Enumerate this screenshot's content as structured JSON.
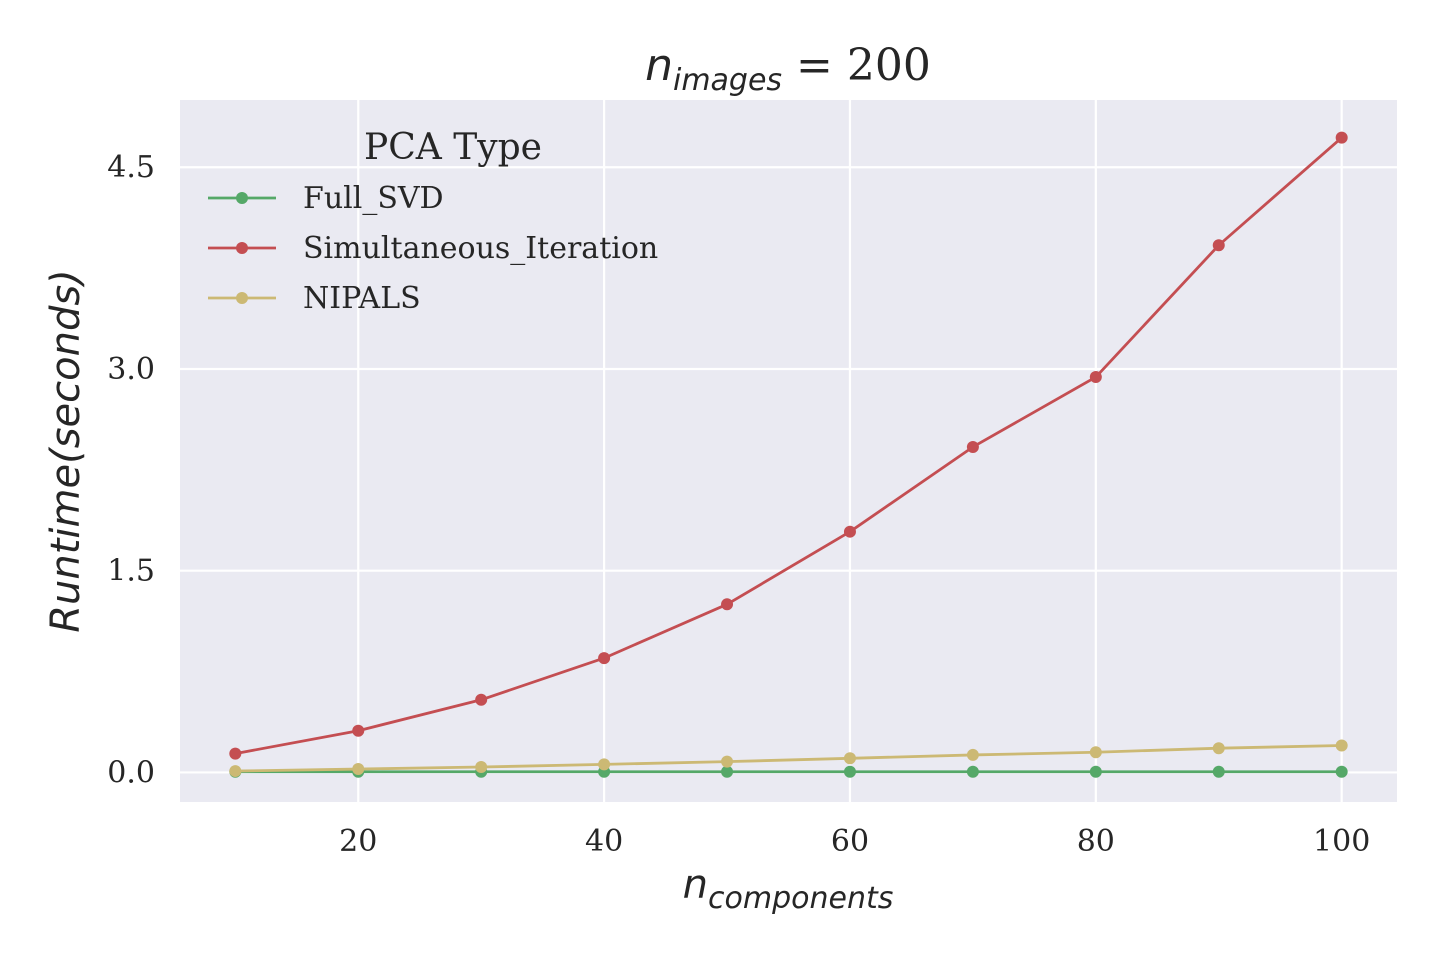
{
  "chart_data": {
    "type": "line",
    "title": {
      "var": "n",
      "sub": "images",
      "suffix": " = 200"
    },
    "xlabel": {
      "var": "n",
      "sub": "components"
    },
    "ylabel": "Runtime(seconds)",
    "x": [
      10,
      20,
      30,
      40,
      50,
      60,
      70,
      80,
      90,
      100
    ],
    "xlim": [
      5.5,
      104.5
    ],
    "ylim": [
      -0.22,
      5.0
    ],
    "xticks": [
      20,
      40,
      60,
      80,
      100
    ],
    "xtick_labels": [
      "20",
      "40",
      "60",
      "80",
      "100"
    ],
    "yticks": [
      0.0,
      1.5,
      3.0,
      4.5
    ],
    "ytick_labels": [
      "0.0",
      "1.5",
      "3.0",
      "4.5"
    ],
    "grid": true,
    "legend": {
      "title": "PCA Type",
      "placement": "upper-left"
    },
    "series": [
      {
        "name": "Full_SVD",
        "color": "#55a868",
        "values": [
          0.005,
          0.005,
          0.005,
          0.005,
          0.005,
          0.005,
          0.005,
          0.005,
          0.005,
          0.005
        ]
      },
      {
        "name": "Simultaneous_Iteration",
        "color": "#c44e52",
        "values": [
          0.14,
          0.31,
          0.54,
          0.85,
          1.25,
          1.79,
          2.42,
          2.94,
          3.92,
          4.72
        ]
      },
      {
        "name": "NIPALS",
        "color": "#ccb974",
        "values": [
          0.01,
          0.025,
          0.04,
          0.06,
          0.08,
          0.105,
          0.13,
          0.15,
          0.18,
          0.2
        ]
      }
    ],
    "colors": {
      "plot_bg": "#eaeaf2",
      "grid": "#ffffff",
      "text": "#262626"
    }
  }
}
